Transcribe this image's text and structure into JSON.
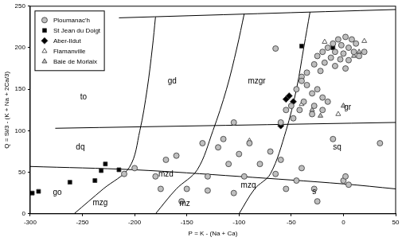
{
  "chart_data": {
    "type": "scatter",
    "x_label": "P = K - (Na + Ca)",
    "y_label": "Q = Si/3 - (K + Na + 2Ca/3)",
    "xlim": [
      -300,
      50
    ],
    "ylim": [
      0,
      250
    ],
    "xticks": [
      -300,
      -250,
      -200,
      -150,
      -100,
      -50,
      0,
      50
    ],
    "yticks": [
      0,
      50,
      100,
      150,
      200,
      250
    ],
    "grid": false,
    "legend": "upper left",
    "series": [
      {
        "name": "Ploumanac'h",
        "color": "#bfbfbf",
        "marker": "circle",
        "x": [
          2,
          -5,
          8,
          -10,
          -2,
          5,
          12,
          -15,
          -20,
          -8,
          0,
          10,
          15,
          -25,
          -12,
          -3,
          5,
          20,
          -18,
          -28,
          -8,
          2,
          -22,
          -35,
          -40,
          -65,
          -40,
          -45,
          -35,
          -30,
          -25,
          -20,
          -15,
          -28,
          -38,
          -50,
          -55,
          -42,
          -30,
          -20,
          -48,
          -60,
          -105,
          -135,
          -160,
          -120,
          -100,
          -90,
          -70,
          -80,
          -110,
          -60,
          -95,
          -130,
          -170,
          -180,
          -200,
          -210,
          -150,
          -130,
          -105,
          -175,
          -155,
          -65,
          -40,
          -45,
          -55,
          0,
          2,
          5,
          35,
          -28,
          -25,
          -10,
          -115
        ],
        "values": [
          213,
          210,
          210,
          205,
          203,
          200,
          205,
          200,
          195,
          195,
          193,
          195,
          190,
          190,
          188,
          186,
          185,
          195,
          182,
          180,
          178,
          175,
          172,
          170,
          165,
          199,
          160,
          150,
          155,
          145,
          150,
          140,
          135,
          130,
          135,
          130,
          125,
          125,
          120,
          125,
          115,
          110,
          110,
          85,
          70,
          80,
          72,
          85,
          75,
          60,
          60,
          65,
          45,
          45,
          65,
          45,
          55,
          48,
          30,
          28,
          25,
          30,
          15,
          48,
          55,
          40,
          30,
          40,
          45,
          35,
          85,
          30,
          15,
          90,
          90
        ]
      },
      {
        "name": "St Jean du Doigt",
        "color": "#000000",
        "marker": "square",
        "x": [
          -298,
          -292,
          -262,
          -238,
          -232,
          -228,
          -215,
          -40,
          -10
        ],
        "values": [
          25,
          27,
          38,
          40,
          52,
          60,
          53,
          202,
          200
        ]
      },
      {
        "name": "Aber-Ildut",
        "color": "#000000",
        "marker": "diamond",
        "x": [
          -60,
          -55,
          -52,
          -48
        ],
        "values": [
          106,
          138,
          142,
          135
        ]
      },
      {
        "name": "Flamanville",
        "color": "#ffffff",
        "marker": "triangle",
        "x": [
          -90,
          -40,
          -18,
          20,
          -5
        ],
        "values": [
          88,
          132,
          207,
          208,
          120
        ]
      },
      {
        "name": "Baie de Morlaix",
        "color": "#bfbfbf",
        "marker": "triangle",
        "x": [
          15,
          10,
          0,
          -30,
          -22
        ],
        "values": [
          195,
          190,
          130,
          125,
          118
        ]
      }
    ],
    "boundaries": [
      {
        "x": [
          -215,
          50
        ],
        "values": [
          236,
          246
        ]
      },
      {
        "x": [
          -276,
          50
        ],
        "values": [
          103,
          110
        ]
      },
      {
        "x": [
          -300,
          -200,
          -100,
          0,
          50
        ],
        "values": [
          57,
          53,
          45,
          36,
          30
        ]
      },
      {
        "x": [
          -258,
          -230,
          -205,
          -195,
          -188,
          -183,
          -180
        ],
        "values": [
          0,
          30,
          56,
          100,
          150,
          200,
          237
        ]
      },
      {
        "x": [
          -180,
          -160,
          -140,
          -125,
          -112,
          -102,
          -95
        ],
        "values": [
          0,
          30,
          53,
          100,
          150,
          200,
          241
        ]
      },
      {
        "x": [
          -100,
          -85,
          -70,
          -55,
          -45,
          -38,
          -32
        ],
        "values": [
          0,
          30,
          48,
          100,
          150,
          200,
          243
        ]
      }
    ],
    "annotations": [
      {
        "text": "to",
        "x": -249,
        "y": 140
      },
      {
        "text": "gd",
        "x": -164,
        "y": 160
      },
      {
        "text": "mzgr",
        "x": -83,
        "y": 160
      },
      {
        "text": "gr",
        "x": 4,
        "y": 128
      },
      {
        "text": "dq",
        "x": -252,
        "y": 80
      },
      {
        "text": "mzd",
        "x": -170,
        "y": 47
      },
      {
        "text": "mzq",
        "x": -91,
        "y": 34
      },
      {
        "text": "sq",
        "x": -6,
        "y": 80
      },
      {
        "text": "go",
        "x": -274,
        "y": 25
      },
      {
        "text": "mzg",
        "x": -233,
        "y": 13
      },
      {
        "text": "mz",
        "x": -152,
        "y": 12
      },
      {
        "text": "s",
        "x": -28,
        "y": 26
      }
    ]
  }
}
